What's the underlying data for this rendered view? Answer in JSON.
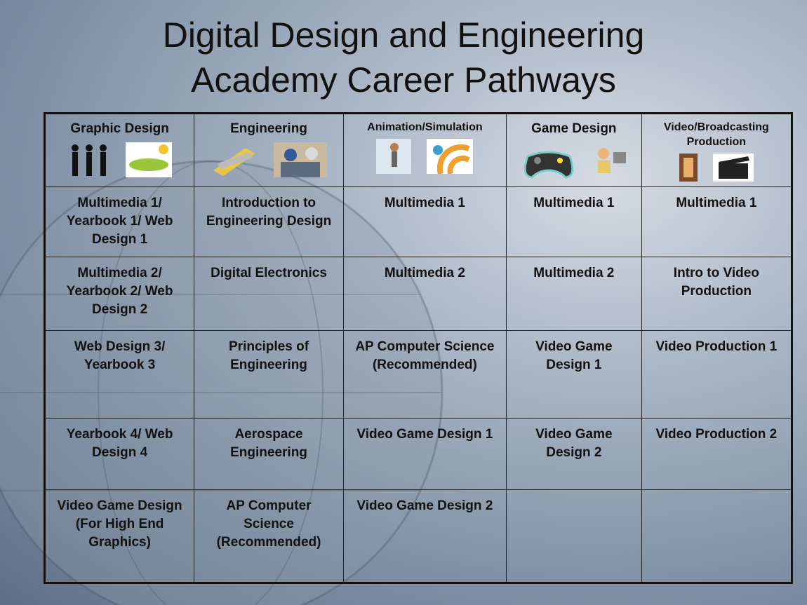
{
  "title": [
    "Digital Design and Engineering",
    "Academy Career Pathways"
  ],
  "table": {
    "header": [
      "Graphic Design",
      "Engineering",
      "Animation/Simulation",
      "Game Design",
      "Video/Broadcasting Production"
    ],
    "rows": [
      [
        "Multimedia 1/ Yearbook 1/ Web Design 1",
        "Introduction to Engineering Design",
        "Multimedia 1",
        "Multimedia 1",
        "Multimedia 1"
      ],
      [
        "Multimedia 2/ Yearbook 2/ Web Design 2",
        "Digital Electronics",
        "Multimedia 2",
        "Multimedia 2",
        "Intro to Video Production"
      ],
      [
        "Web Design 3/ Yearbook 3",
        "Principles of Engineering",
        "AP Computer Science (Recommended)",
        "Video Game Design 1",
        "Video Production 1"
      ],
      [
        "Yearbook 4/ Web Design 4",
        "Aerospace Engineering",
        "Video Game Design 1",
        "Video Game Design 2",
        "Video Production 2"
      ],
      [
        "Video Game Design (For High End Graphics)",
        "AP Computer Science (Recommended)",
        "Video Game Design 2"
      ]
    ]
  }
}
